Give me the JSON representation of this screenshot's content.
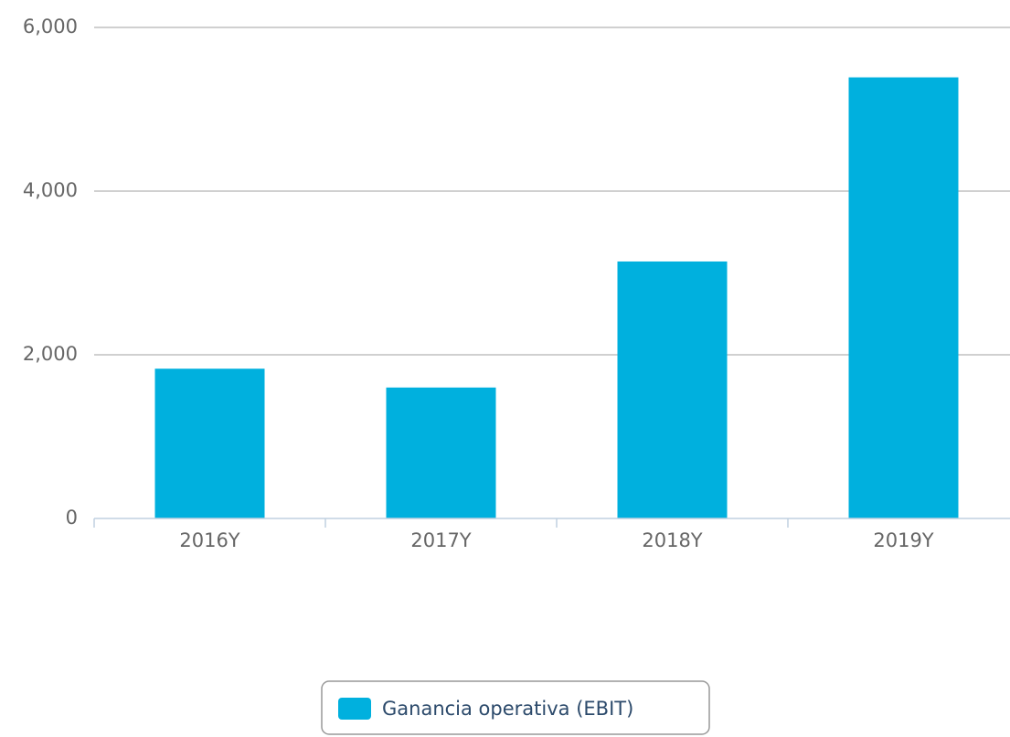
{
  "chart_data": {
    "type": "bar",
    "categories": [
      "2016Y",
      "2017Y",
      "2018Y",
      "2019Y"
    ],
    "series": [
      {
        "name": "Ganancia operativa (EBIT)",
        "color": "#00b0de",
        "values": [
          1830,
          1600,
          3140,
          5390
        ]
      }
    ],
    "ylim": [
      0,
      6000
    ],
    "yticks": [
      0,
      {
        "value": 2000,
        "label": "2,000"
      },
      {
        "value": 4000,
        "label": "4,000"
      },
      {
        "value": 6000,
        "label": "6,000"
      }
    ],
    "grid": true,
    "legend": "bottom"
  }
}
